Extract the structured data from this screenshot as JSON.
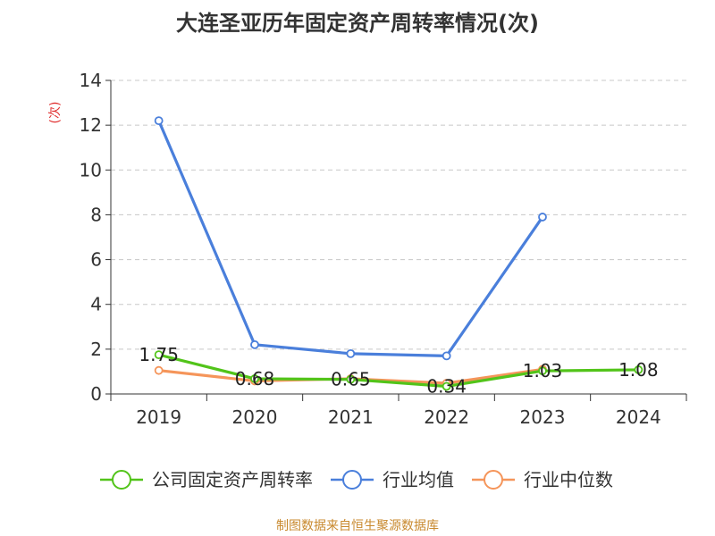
{
  "chart_data": {
    "type": "line",
    "title": "大连圣亚历年固定资产周转率情况(次)",
    "ylabel": "(次)",
    "xlabel": "",
    "categories": [
      "2019",
      "2020",
      "2021",
      "2022",
      "2023",
      "2024"
    ],
    "ylim": [
      0,
      14
    ],
    "yticks": [
      0,
      2,
      4,
      6,
      8,
      10,
      12,
      14
    ],
    "grid": true,
    "legend_position": "bottom",
    "series": [
      {
        "name": "公司固定资产周转率",
        "color": "#52c41a",
        "values": [
          1.75,
          0.68,
          0.65,
          0.34,
          1.03,
          1.08
        ],
        "labels": [
          "1.75",
          "0.68",
          "0.65",
          "0.34",
          "1.03",
          "1.08"
        ]
      },
      {
        "name": "行业均值",
        "color": "#4a7fdb",
        "values": [
          12.2,
          2.2,
          1.8,
          1.7,
          7.9,
          null
        ]
      },
      {
        "name": "行业中位数",
        "color": "#f5955a",
        "values": [
          1.05,
          0.58,
          0.68,
          0.48,
          1.1,
          null
        ]
      }
    ]
  },
  "source": "制图数据来自恒生聚源数据库"
}
